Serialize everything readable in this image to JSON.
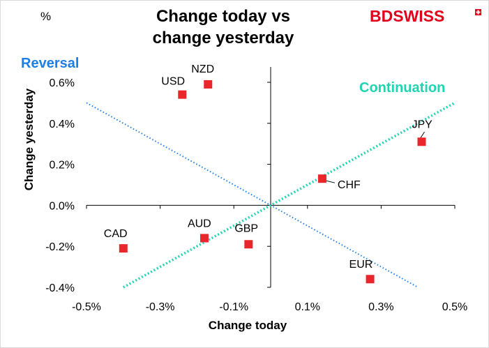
{
  "title": [
    "Change today vs",
    "change yesterday"
  ],
  "logo": {
    "text_bd": "BD",
    "text_swiss": "SWISS",
    "color": "#e2001a"
  },
  "unit_label": "%",
  "zone_labels": {
    "reversal": "Reversal",
    "continuation": "Continuation",
    "reversal_color": "#1e7ee8",
    "continuation_color": "#1fd4b2"
  },
  "chart_data": {
    "type": "scatter",
    "xlabel": "Change today",
    "ylabel": "Change yesterday",
    "xlim": [
      -0.5,
      0.5
    ],
    "ylim": [
      -0.4,
      0.6
    ],
    "x_ticks": [
      -0.5,
      -0.3,
      -0.1,
      0.1,
      0.3,
      0.5
    ],
    "x_tick_labels": [
      "-0.5%",
      "-0.3%",
      "-0.1%",
      "0.1%",
      "0.3%",
      "0.5%"
    ],
    "y_ticks": [
      -0.4,
      -0.2,
      0.0,
      0.2,
      0.4,
      0.6
    ],
    "y_tick_labels": [
      "-0.4%",
      "-0.2%",
      "0.0%",
      "0.2%",
      "0.4%",
      "0.6%"
    ],
    "grid": false,
    "marker_color": "#e8262b",
    "points": [
      {
        "label": "USD",
        "x": -0.24,
        "y": 0.54
      },
      {
        "label": "NZD",
        "x": -0.17,
        "y": 0.59
      },
      {
        "label": "JPY",
        "x": 0.41,
        "y": 0.31
      },
      {
        "label": "CHF",
        "x": 0.14,
        "y": 0.13
      },
      {
        "label": "CAD",
        "x": -0.4,
        "y": -0.21
      },
      {
        "label": "AUD",
        "x": -0.18,
        "y": -0.16
      },
      {
        "label": "GBP",
        "x": -0.06,
        "y": -0.19
      },
      {
        "label": "EUR",
        "x": 0.27,
        "y": -0.36
      }
    ],
    "reference_lines": [
      {
        "name": "Reversal",
        "x": [
          -0.5,
          0.4
        ],
        "y": [
          0.5,
          -0.4
        ],
        "color": "#1e7ee8"
      },
      {
        "name": "Continuation",
        "x": [
          -0.4,
          0.5
        ],
        "y": [
          -0.4,
          0.5
        ],
        "color": "#1fd4b2"
      }
    ]
  }
}
